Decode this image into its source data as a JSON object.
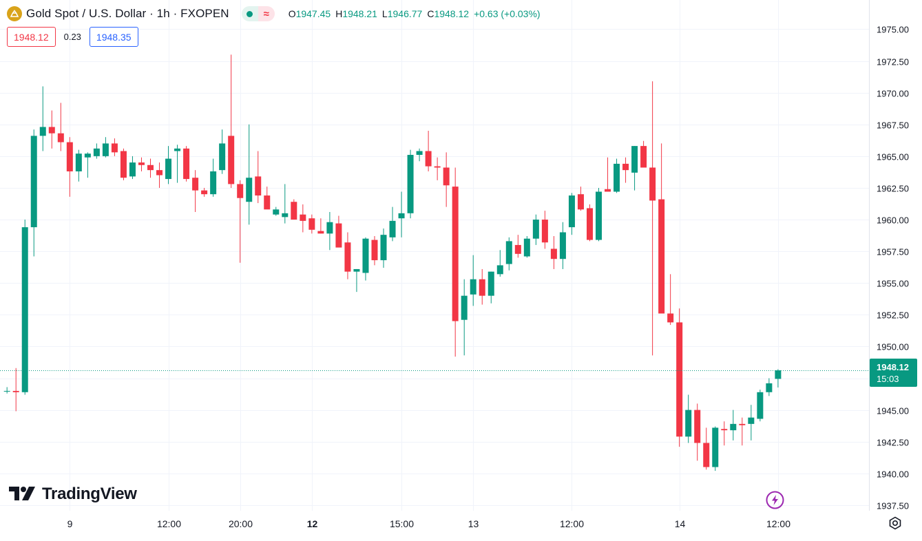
{
  "header": {
    "symbol_title": "Gold Spot / U.S. Dollar · 1h · FXOPEN",
    "market_open_icon": "green-dot-icon",
    "status_glyph": "≈",
    "ohlc": {
      "o_label": "O",
      "o_value": "1947.45",
      "h_label": "H",
      "h_value": "1948.21",
      "l_label": "L",
      "l_value": "1946.77",
      "c_label": "C",
      "c_value": "1948.12",
      "change": "+0.63 (+0.03%)"
    }
  },
  "quotes": {
    "bid": "1948.12",
    "spread": "0.23",
    "ask": "1948.35"
  },
  "last_price": {
    "price": "1948.12",
    "countdown": "15:03"
  },
  "brand": {
    "logo_text": "TradingView"
  },
  "colors": {
    "up": "#089981",
    "down": "#f23645",
    "grid": "#f0f3fa",
    "accent_ask": "#2962ff",
    "gold": "#d9a31a"
  },
  "chart_data": {
    "type": "candlestick",
    "title": "Gold Spot / U.S. Dollar · 1h · FXOPEN",
    "ylim": [
      1936.3,
      1976.6
    ],
    "y_ticks": [
      1975,
      1972.5,
      1970,
      1967.5,
      1965,
      1962.5,
      1960,
      1957.5,
      1955,
      1952.5,
      1950,
      1947.5,
      1945,
      1942.5,
      1940,
      1937.5
    ],
    "y_tick_labels": [
      "1975.00",
      "1972.50",
      "1970.00",
      "1967.50",
      "1965.00",
      "1962.50",
      "1960.00",
      "1957.50",
      "1955.00",
      "1952.50",
      "1950.00",
      "1947.50",
      "1945.00",
      "1942.50",
      "1940.00",
      "1937.50"
    ],
    "x_tick_labels": [
      {
        "bar": 6,
        "label": "9",
        "bold": false
      },
      {
        "bar": 17,
        "label": "12:00",
        "bold": false
      },
      {
        "bar": 25,
        "label": "20:00",
        "bold": false
      },
      {
        "bar": 33,
        "label": "12",
        "bold": true
      },
      {
        "bar": 43,
        "label": "15:00",
        "bold": false
      },
      {
        "bar": 51,
        "label": "13",
        "bold": false
      },
      {
        "bar": 62,
        "label": "12:00",
        "bold": false
      },
      {
        "bar": 74,
        "label": "14",
        "bold": false
      },
      {
        "bar": 85,
        "label": "12:00",
        "bold": false
      }
    ],
    "first_bar_index": -1,
    "candles": [
      [
        1946.5,
        1946.8,
        1946.3,
        1946.5
      ],
      [
        1946.5,
        1948.3,
        1944.9,
        1946.4
      ],
      [
        1946.4,
        1960.0,
        1946.2,
        1959.4
      ],
      [
        1959.4,
        1967.1,
        1957.1,
        1966.6
      ],
      [
        1966.6,
        1970.5,
        1965.4,
        1967.3
      ],
      [
        1967.3,
        1968.6,
        1965.6,
        1966.8
      ],
      [
        1966.8,
        1969.2,
        1965.4,
        1966.1
      ],
      [
        1966.1,
        1966.5,
        1961.8,
        1963.8
      ],
      [
        1963.8,
        1965.5,
        1963.0,
        1965.2
      ],
      [
        1964.9,
        1965.3,
        1963.3,
        1965.2
      ],
      [
        1965.0,
        1966.0,
        1964.8,
        1965.6
      ],
      [
        1965.0,
        1966.5,
        1964.9,
        1966.0
      ],
      [
        1966.0,
        1966.4,
        1965.0,
        1965.3
      ],
      [
        1965.4,
        1965.6,
        1963.1,
        1963.3
      ],
      [
        1963.4,
        1965.0,
        1963.2,
        1964.5
      ],
      [
        1964.5,
        1964.9,
        1963.8,
        1964.3
      ],
      [
        1964.3,
        1964.8,
        1963.3,
        1963.9
      ],
      [
        1963.9,
        1964.5,
        1962.5,
        1963.5
      ],
      [
        1963.2,
        1965.8,
        1962.8,
        1964.8
      ],
      [
        1965.4,
        1965.9,
        1962.9,
        1965.6
      ],
      [
        1965.6,
        1965.8,
        1963.0,
        1963.2
      ],
      [
        1963.3,
        1963.9,
        1960.6,
        1962.3
      ],
      [
        1962.3,
        1962.5,
        1961.8,
        1962.0
      ],
      [
        1962.0,
        1964.8,
        1961.8,
        1963.8
      ],
      [
        1963.9,
        1967.1,
        1963.6,
        1966.0
      ],
      [
        1966.6,
        1973.0,
        1962.5,
        1962.8
      ],
      [
        1962.8,
        1963.1,
        1956.6,
        1961.7
      ],
      [
        1961.4,
        1967.5,
        1959.6,
        1963.3
      ],
      [
        1963.4,
        1965.4,
        1961.3,
        1961.9
      ],
      [
        1961.9,
        1962.6,
        1960.9,
        1960.8
      ],
      [
        1960.4,
        1961.0,
        1960.3,
        1960.8
      ],
      [
        1960.2,
        1962.8,
        1959.7,
        1960.5
      ],
      [
        1961.4,
        1961.6,
        1960.0,
        1960.0
      ],
      [
        1960.4,
        1961.2,
        1959.0,
        1959.9
      ],
      [
        1960.1,
        1960.4,
        1958.9,
        1959.2
      ],
      [
        1959.1,
        1960.1,
        1958.9,
        1958.9
      ],
      [
        1958.9,
        1960.6,
        1957.6,
        1959.8
      ],
      [
        1959.7,
        1960.3,
        1957.9,
        1957.8
      ],
      [
        1958.2,
        1959.0,
        1955.3,
        1955.9
      ],
      [
        1955.9,
        1956.1,
        1954.3,
        1956.1
      ],
      [
        1955.8,
        1958.6,
        1955.2,
        1958.5
      ],
      [
        1958.4,
        1958.7,
        1956.4,
        1956.8
      ],
      [
        1956.8,
        1959.3,
        1956.2,
        1958.8
      ],
      [
        1958.6,
        1961.0,
        1958.3,
        1959.9
      ],
      [
        1960.1,
        1962.2,
        1958.6,
        1960.5
      ],
      [
        1960.5,
        1965.5,
        1960.1,
        1965.1
      ],
      [
        1965.1,
        1965.6,
        1964.6,
        1965.4
      ],
      [
        1965.4,
        1967.0,
        1963.8,
        1964.2
      ],
      [
        1964.2,
        1964.9,
        1963.1,
        1964.1
      ],
      [
        1964.1,
        1965.3,
        1961.0,
        1962.7
      ],
      [
        1962.6,
        1964.1,
        1949.2,
        1952.0
      ],
      [
        1952.1,
        1955.3,
        1949.3,
        1954.0
      ],
      [
        1954.1,
        1957.2,
        1953.2,
        1955.3
      ],
      [
        1955.3,
        1956.1,
        1953.3,
        1954.0
      ],
      [
        1954.0,
        1955.9,
        1953.4,
        1955.9
      ],
      [
        1955.7,
        1957.6,
        1955.5,
        1956.4
      ],
      [
        1956.5,
        1958.6,
        1956.0,
        1958.3
      ],
      [
        1958.0,
        1958.8,
        1957.0,
        1957.3
      ],
      [
        1957.1,
        1958.7,
        1957.0,
        1958.5
      ],
      [
        1958.5,
        1960.4,
        1958.0,
        1960.0
      ],
      [
        1960.0,
        1960.7,
        1957.7,
        1958.2
      ],
      [
        1957.7,
        1958.7,
        1956.1,
        1956.9
      ],
      [
        1956.9,
        1959.8,
        1956.1,
        1959.0
      ],
      [
        1959.4,
        1962.1,
        1958.8,
        1961.9
      ],
      [
        1962.0,
        1962.6,
        1960.7,
        1960.8
      ],
      [
        1960.9,
        1961.2,
        1958.3,
        1958.4
      ],
      [
        1958.4,
        1962.5,
        1958.3,
        1962.2
      ],
      [
        1962.4,
        1964.9,
        1962.2,
        1962.2
      ],
      [
        1962.2,
        1964.8,
        1962.1,
        1964.4
      ],
      [
        1964.4,
        1964.9,
        1962.9,
        1963.9
      ],
      [
        1963.7,
        1965.8,
        1962.3,
        1965.8
      ],
      [
        1965.8,
        1966.2,
        1964.3,
        1964.1
      ],
      [
        1964.1,
        1970.9,
        1949.3,
        1961.5
      ],
      [
        1961.6,
        1966.0,
        1952.8,
        1952.6
      ],
      [
        1952.6,
        1955.7,
        1951.7,
        1951.9
      ],
      [
        1951.9,
        1953.0,
        1942.1,
        1942.9
      ],
      [
        1942.9,
        1946.2,
        1942.4,
        1945.0
      ],
      [
        1945.0,
        1945.5,
        1941.0,
        1942.4
      ],
      [
        1942.4,
        1943.6,
        1940.3,
        1940.5
      ],
      [
        1940.5,
        1943.7,
        1940.2,
        1943.6
      ],
      [
        1943.5,
        1944.1,
        1942.2,
        1943.4
      ],
      [
        1943.4,
        1945.0,
        1942.6,
        1943.9
      ],
      [
        1943.9,
        1944.4,
        1942.2,
        1943.8
      ],
      [
        1943.9,
        1945.4,
        1942.6,
        1944.4
      ],
      [
        1944.3,
        1946.6,
        1944.1,
        1946.4
      ],
      [
        1946.4,
        1947.5,
        1946.1,
        1947.1
      ],
      [
        1947.45,
        1948.21,
        1946.77,
        1948.12
      ]
    ]
  }
}
